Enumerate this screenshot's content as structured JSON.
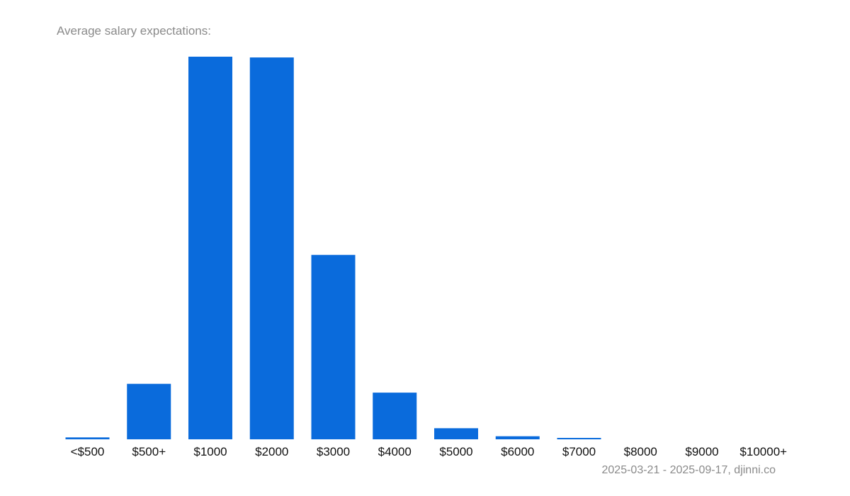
{
  "chart_data": {
    "type": "bar",
    "title": "Average salary expectations:",
    "categories": [
      "<$500",
      "$500+",
      "$1000",
      "$2000",
      "$3000",
      "$4000",
      "$5000",
      "$6000",
      "$7000",
      "$8000",
      "$9000",
      "$10000+"
    ],
    "values": [
      0.5,
      14.5,
      100,
      99.8,
      48.2,
      12.2,
      2.9,
      0.8,
      0.2,
      0,
      0,
      0
    ],
    "xlabel": "",
    "ylabel": "",
    "ylim": [
      0,
      100
    ],
    "grid": false,
    "legend": "none",
    "bar_color": "#0a6bdc",
    "footer": "2025-03-21 - 2025-09-17, djinni.co"
  }
}
